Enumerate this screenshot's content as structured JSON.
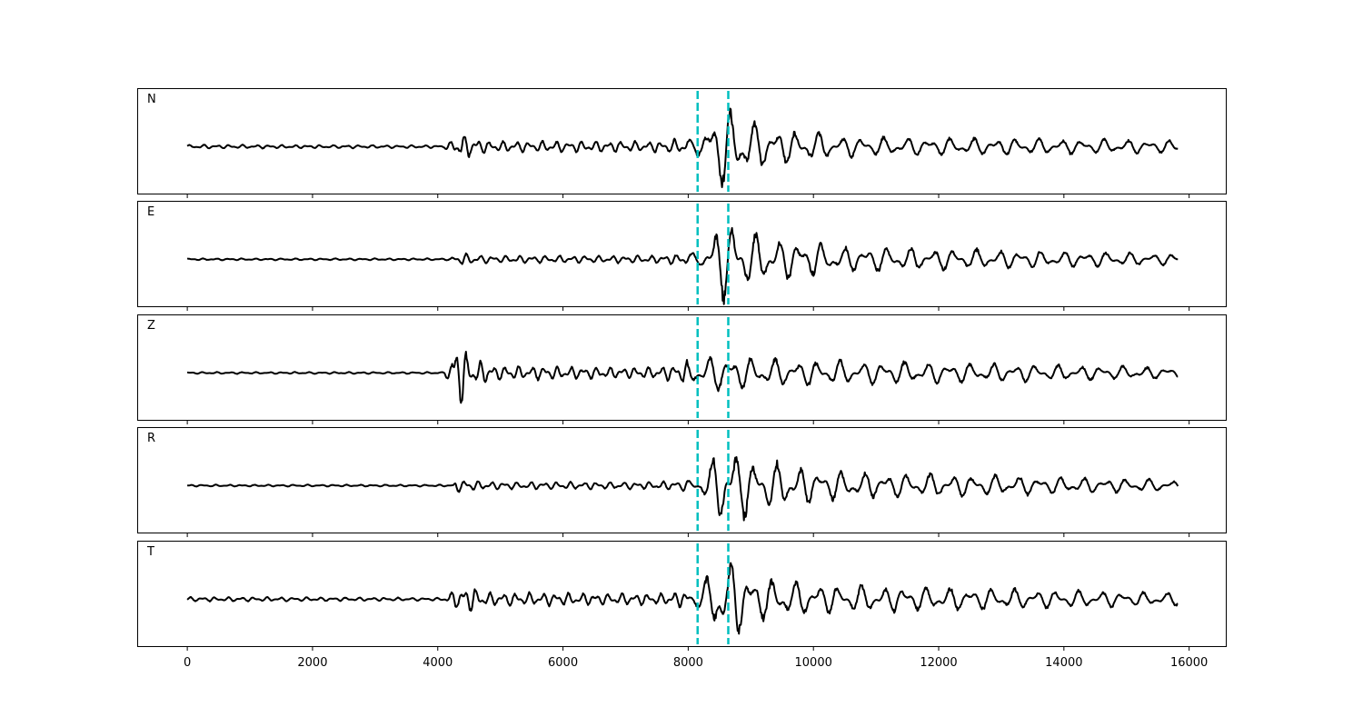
{
  "chart_data": {
    "type": "line",
    "title": "",
    "xlabel": "",
    "ylabel": "",
    "xlim": [
      -800,
      16600
    ],
    "x_ticks": [
      0,
      2000,
      4000,
      6000,
      8000,
      10000,
      12000,
      14000,
      16000
    ],
    "x_tick_labels": [
      "0",
      "2000",
      "4000",
      "6000",
      "8000",
      "10000",
      "12000",
      "14000",
      "16000"
    ],
    "y_ticks_shown": false,
    "grid": false,
    "legend": "none",
    "trace_color": "#000000",
    "pick_color": "#00bfbf",
    "picks_x": [
      8150,
      8640
    ],
    "series": [
      {
        "name": "N",
        "x_range": [
          0,
          15820
        ],
        "envelope": [
          {
            "x": 0,
            "amp": 0.04
          },
          {
            "x": 4100,
            "amp": 0.03
          },
          {
            "x": 4200,
            "amp": 0.12
          },
          {
            "x": 4400,
            "amp": 0.27
          },
          {
            "x": 4800,
            "amp": 0.12
          },
          {
            "x": 7500,
            "amp": 0.12
          },
          {
            "x": 8200,
            "amp": 0.2
          },
          {
            "x": 8450,
            "amp": 0.95
          },
          {
            "x": 8650,
            "amp": 0.88
          },
          {
            "x": 9200,
            "amp": 0.45
          },
          {
            "x": 10500,
            "amp": 0.22
          },
          {
            "x": 15820,
            "amp": 0.14
          }
        ]
      },
      {
        "name": "E",
        "x_range": [
          0,
          15820
        ],
        "envelope": [
          {
            "x": 0,
            "amp": 0.02
          },
          {
            "x": 4200,
            "amp": 0.02
          },
          {
            "x": 4300,
            "amp": 0.14
          },
          {
            "x": 4800,
            "amp": 0.08
          },
          {
            "x": 7500,
            "amp": 0.08
          },
          {
            "x": 8200,
            "amp": 0.15
          },
          {
            "x": 8450,
            "amp": 0.75
          },
          {
            "x": 8650,
            "amp": 1.0
          },
          {
            "x": 9000,
            "amp": 0.55
          },
          {
            "x": 10500,
            "amp": 0.28
          },
          {
            "x": 15820,
            "amp": 0.12
          }
        ]
      },
      {
        "name": "Z",
        "x_range": [
          0,
          15820
        ],
        "envelope": [
          {
            "x": 0,
            "amp": 0.02
          },
          {
            "x": 4100,
            "amp": 0.02
          },
          {
            "x": 4200,
            "amp": 0.25
          },
          {
            "x": 4300,
            "amp": 1.0
          },
          {
            "x": 4500,
            "amp": 0.3
          },
          {
            "x": 5000,
            "amp": 0.15
          },
          {
            "x": 7500,
            "amp": 0.12
          },
          {
            "x": 8500,
            "amp": 0.4
          },
          {
            "x": 9200,
            "amp": 0.3
          },
          {
            "x": 15820,
            "amp": 0.12
          }
        ]
      },
      {
        "name": "R",
        "x_range": [
          0,
          15820
        ],
        "envelope": [
          {
            "x": 0,
            "amp": 0.02
          },
          {
            "x": 4250,
            "amp": 0.02
          },
          {
            "x": 4300,
            "amp": 0.15
          },
          {
            "x": 4800,
            "amp": 0.08
          },
          {
            "x": 7500,
            "amp": 0.08
          },
          {
            "x": 8200,
            "amp": 0.15
          },
          {
            "x": 8500,
            "amp": 0.85
          },
          {
            "x": 8650,
            "amp": 1.0
          },
          {
            "x": 9000,
            "amp": 0.55
          },
          {
            "x": 10500,
            "amp": 0.3
          },
          {
            "x": 15820,
            "amp": 0.12
          }
        ]
      },
      {
        "name": "T",
        "x_range": [
          0,
          15820
        ],
        "envelope": [
          {
            "x": 0,
            "amp": 0.05
          },
          {
            "x": 4100,
            "amp": 0.03
          },
          {
            "x": 4200,
            "amp": 0.15
          },
          {
            "x": 4450,
            "amp": 0.32
          },
          {
            "x": 4800,
            "amp": 0.15
          },
          {
            "x": 7500,
            "amp": 0.12
          },
          {
            "x": 8200,
            "amp": 0.2
          },
          {
            "x": 8450,
            "amp": 0.95
          },
          {
            "x": 8700,
            "amp": 0.85
          },
          {
            "x": 9200,
            "amp": 0.45
          },
          {
            "x": 10500,
            "amp": 0.3
          },
          {
            "x": 15820,
            "amp": 0.14
          }
        ]
      }
    ]
  }
}
